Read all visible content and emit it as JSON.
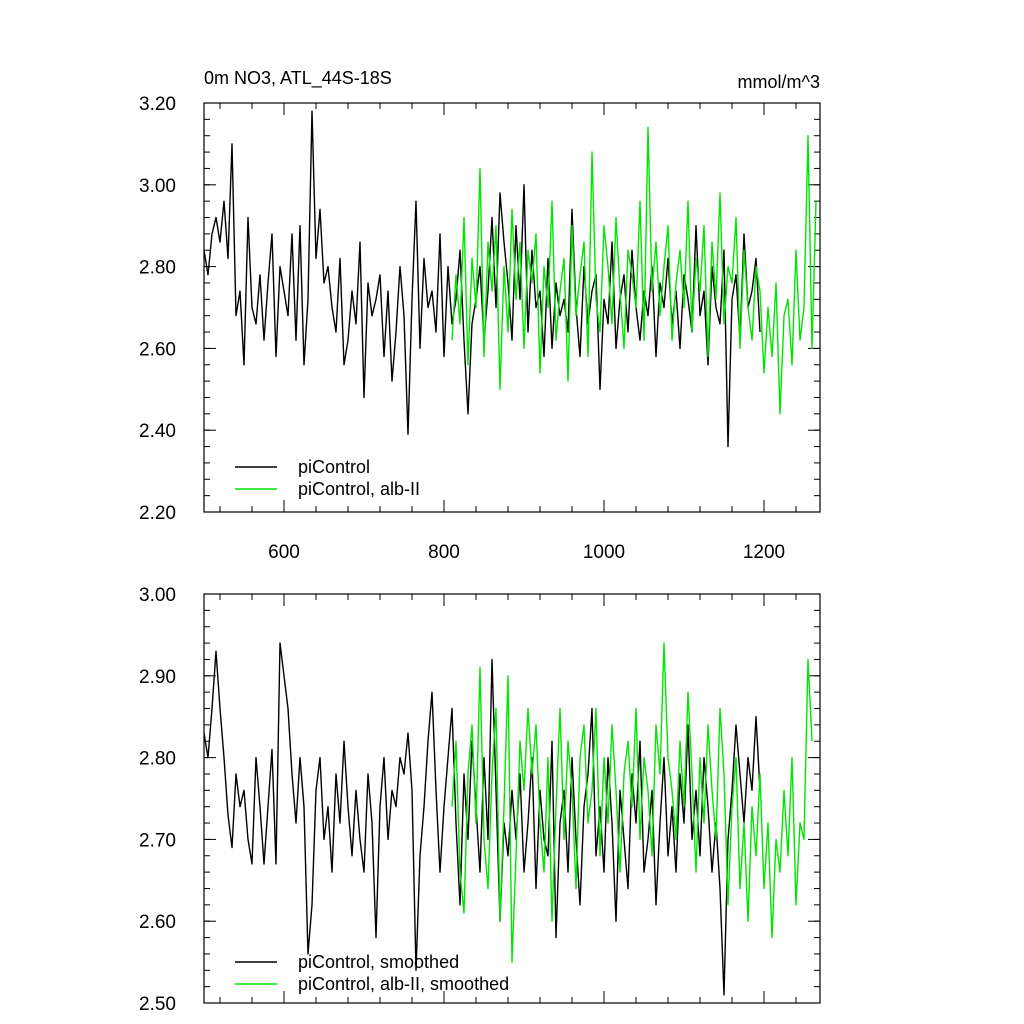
{
  "colors": {
    "black_series": "#000000",
    "green_series": "#00e600"
  },
  "chart_data": [
    {
      "type": "line",
      "title_left": "0m NO3, ATL_44S-18S",
      "title_right": "mmol/m^3",
      "xlim": [
        500,
        1270
      ],
      "ylim": [
        2.2,
        3.2
      ],
      "x_ticks": [
        600,
        800,
        1000,
        1200
      ],
      "x_tick_labels": [
        "600",
        "800",
        "1000",
        "1200"
      ],
      "y_ticks": [
        2.2,
        2.4,
        2.6,
        2.8,
        3.0,
        3.2
      ],
      "y_tick_labels": [
        "2.20",
        "2.40",
        "2.60",
        "2.80",
        "3.00",
        "3.20"
      ],
      "legend_placement": "bottom-left",
      "series": [
        {
          "name": "piControl",
          "color": "#000000",
          "x_start": 500,
          "x_step": 5,
          "values": [
            2.84,
            2.78,
            2.88,
            2.92,
            2.86,
            2.96,
            2.82,
            3.1,
            2.68,
            2.74,
            2.56,
            2.92,
            2.7,
            2.66,
            2.78,
            2.62,
            2.76,
            2.88,
            2.58,
            2.8,
            2.74,
            2.68,
            2.88,
            2.62,
            2.9,
            2.56,
            2.72,
            3.18,
            2.82,
            2.94,
            2.76,
            2.8,
            2.7,
            2.64,
            2.82,
            2.56,
            2.62,
            2.74,
            2.66,
            2.86,
            2.48,
            2.76,
            2.68,
            2.72,
            2.78,
            2.58,
            2.74,
            2.52,
            2.64,
            2.8,
            2.68,
            2.39,
            2.72,
            2.96,
            2.6,
            2.82,
            2.7,
            2.74,
            2.64,
            2.88,
            2.58,
            2.8,
            2.66,
            2.72,
            2.84,
            2.62,
            2.44,
            2.66,
            2.72,
            2.8,
            2.62,
            2.74,
            2.92,
            2.7,
            2.98,
            2.86,
            2.76,
            2.62,
            2.9,
            2.72,
            3.0,
            2.64,
            2.84,
            2.7,
            2.74,
            2.58,
            2.82,
            2.6,
            2.76,
            2.68,
            2.72,
            2.64,
            2.94,
            2.7,
            2.58,
            2.8,
            2.66,
            2.74,
            2.78,
            2.5,
            2.72,
            2.66,
            2.86,
            2.6,
            2.72,
            2.78,
            2.64,
            2.84,
            2.7,
            2.62,
            2.74,
            2.68,
            2.8,
            2.58,
            2.76,
            2.7,
            2.82,
            2.66,
            2.74,
            2.6,
            2.78,
            2.72,
            2.64,
            2.9,
            2.68,
            2.74,
            2.56,
            2.8,
            2.7,
            2.66,
            2.84,
            2.36,
            2.72,
            2.78,
            2.62,
            2.88,
            2.7,
            2.74,
            2.82,
            2.64
          ]
        },
        {
          "name": "piControl, alb-II",
          "color": "#00e600",
          "x_start": 810,
          "x_step": 5,
          "values": [
            2.62,
            2.78,
            2.66,
            2.92,
            2.56,
            2.82,
            2.7,
            3.04,
            2.58,
            2.86,
            2.74,
            2.9,
            2.5,
            2.8,
            2.64,
            2.94,
            2.72,
            2.86,
            2.6,
            2.84,
            2.76,
            2.88,
            2.54,
            2.8,
            2.7,
            2.96,
            2.62,
            2.74,
            2.82,
            2.52,
            2.9,
            2.68,
            2.78,
            2.86,
            2.58,
            3.08,
            2.72,
            2.64,
            2.9,
            2.8,
            2.66,
            2.92,
            2.74,
            2.6,
            2.84,
            2.78,
            2.7,
            2.96,
            2.62,
            3.14,
            2.74,
            2.86,
            2.68,
            2.8,
            2.9,
            2.62,
            2.76,
            2.84,
            2.7,
            2.96,
            2.64,
            2.82,
            2.74,
            2.9,
            2.58,
            2.86,
            2.72,
            2.98,
            2.66,
            2.8,
            2.76,
            2.92,
            2.6,
            2.84,
            2.7,
            2.62,
            2.8,
            2.74,
            2.54,
            2.7,
            2.58,
            2.76,
            2.44,
            2.68,
            2.72,
            2.56,
            2.84,
            2.62,
            2.7,
            3.12,
            2.6,
            2.96
          ]
        }
      ]
    },
    {
      "type": "line",
      "xlim": [
        500,
        1270
      ],
      "ylim": [
        2.5,
        3.0
      ],
      "y_ticks": [
        2.5,
        2.6,
        2.7,
        2.8,
        2.9,
        3.0
      ],
      "y_tick_labels": [
        "2.50",
        "2.60",
        "2.70",
        "2.80",
        "2.90",
        "3.00"
      ],
      "x_ticks": [
        600,
        800,
        1000,
        1200
      ],
      "legend_placement": "bottom-left",
      "series": [
        {
          "name": "piControl, smoothed",
          "color": "#000000",
          "x_start": 500,
          "x_step": 5,
          "values": [
            2.83,
            2.8,
            2.86,
            2.93,
            2.86,
            2.8,
            2.73,
            2.69,
            2.78,
            2.74,
            2.76,
            2.7,
            2.67,
            2.8,
            2.74,
            2.67,
            2.74,
            2.81,
            2.67,
            2.94,
            2.9,
            2.86,
            2.78,
            2.72,
            2.8,
            2.74,
            2.56,
            2.62,
            2.76,
            2.8,
            2.7,
            2.74,
            2.66,
            2.78,
            2.72,
            2.82,
            2.74,
            2.68,
            2.76,
            2.7,
            2.66,
            2.78,
            2.72,
            2.58,
            2.74,
            2.8,
            2.7,
            2.76,
            2.74,
            2.8,
            2.78,
            2.83,
            2.76,
            2.54,
            2.68,
            2.74,
            2.82,
            2.88,
            2.76,
            2.66,
            2.74,
            2.8,
            2.86,
            2.72,
            2.62,
            2.78,
            2.7,
            2.82,
            2.74,
            2.66,
            2.8,
            2.7,
            2.92,
            2.76,
            2.6,
            2.72,
            2.68,
            2.76,
            2.7,
            2.78,
            2.66,
            2.72,
            2.8,
            2.64,
            2.76,
            2.7,
            2.68,
            2.82,
            2.58,
            2.72,
            2.76,
            2.66,
            2.8,
            2.7,
            2.62,
            2.74,
            2.78,
            2.86,
            2.68,
            2.74,
            2.66,
            2.8,
            2.72,
            2.6,
            2.76,
            2.7,
            2.64,
            2.78,
            2.72,
            2.82,
            2.66,
            2.7,
            2.76,
            2.62,
            2.72,
            2.8,
            2.68,
            2.74,
            2.66,
            2.78,
            2.72,
            2.84,
            2.7,
            2.76,
            2.68,
            2.8,
            2.74,
            2.66,
            2.72,
            2.64,
            2.51,
            2.7,
            2.76,
            2.84,
            2.78,
            2.72,
            2.8,
            2.76,
            2.85,
            2.76
          ]
        },
        {
          "name": "piControl, alb-II, smoothed",
          "color": "#00e600",
          "x_start": 810,
          "x_step": 5,
          "values": [
            2.74,
            2.82,
            2.66,
            2.61,
            2.78,
            2.84,
            2.72,
            2.91,
            2.7,
            2.64,
            2.78,
            2.86,
            2.6,
            2.74,
            2.9,
            2.55,
            2.68,
            2.82,
            2.76,
            2.86,
            2.78,
            2.84,
            2.72,
            2.66,
            2.8,
            2.6,
            2.74,
            2.86,
            2.7,
            2.82,
            2.76,
            2.64,
            2.8,
            2.84,
            2.72,
            2.76,
            2.86,
            2.68,
            2.8,
            2.72,
            2.84,
            2.76,
            2.66,
            2.78,
            2.82,
            2.74,
            2.86,
            2.7,
            2.8,
            2.76,
            2.68,
            2.84,
            2.78,
            2.94,
            2.8,
            2.76,
            2.7,
            2.82,
            2.74,
            2.88,
            2.78,
            2.66,
            2.8,
            2.72,
            2.84,
            2.76,
            2.7,
            2.86,
            2.78,
            2.62,
            2.74,
            2.8,
            2.64,
            2.72,
            2.6,
            2.74,
            2.68,
            2.78,
            2.64,
            2.72,
            2.58,
            2.7,
            2.66,
            2.76,
            2.68,
            2.8,
            2.62,
            2.72,
            2.7,
            2.92,
            2.82
          ]
        }
      ]
    }
  ]
}
